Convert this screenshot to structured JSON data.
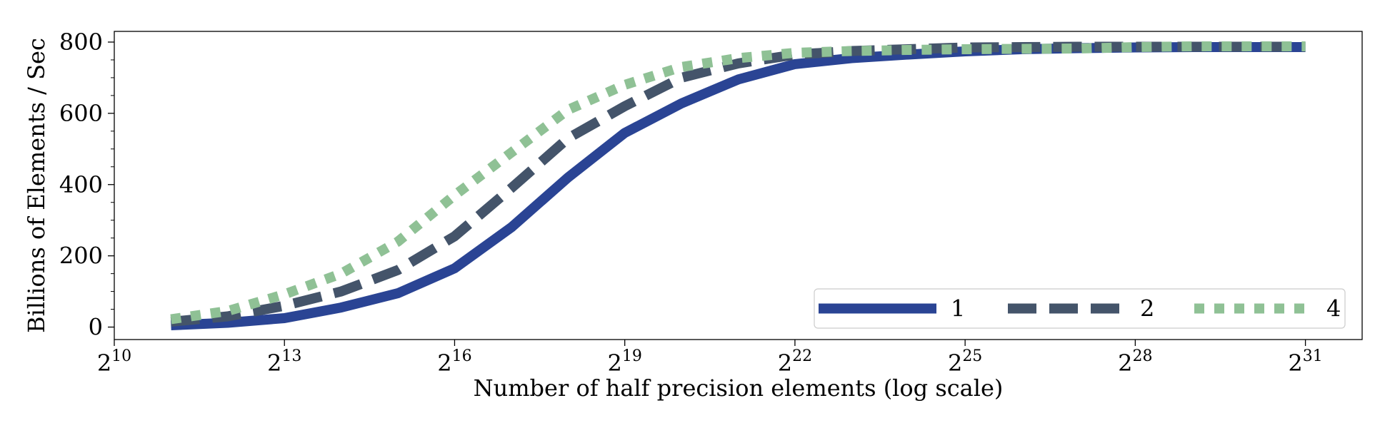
{
  "chart_data": {
    "type": "line",
    "title": "",
    "xlabel": "Number of half precision elements (log scale)",
    "ylabel": "Billions of Elements / Sec",
    "x_scale": "log2",
    "x_tick_base": "2",
    "x_tick_exponents": [
      "10",
      "13",
      "16",
      "19",
      "22",
      "25",
      "28",
      "31"
    ],
    "xlim_exponent": [
      10,
      32
    ],
    "y_ticks": [
      "0",
      "200",
      "400",
      "600",
      "800"
    ],
    "ylim": [
      -35,
      830
    ],
    "grid": false,
    "legend": {
      "placement": "lower-right",
      "columns": 3
    },
    "series": [
      {
        "name": "1",
        "color": "#2a4494",
        "style": "solid",
        "x_exponent": [
          11,
          12,
          13,
          14,
          15,
          16,
          17,
          18,
          19,
          20,
          21,
          22,
          23,
          24,
          25,
          26,
          27,
          28,
          29,
          30,
          31
        ],
        "y": [
          5,
          12,
          25,
          55,
          95,
          165,
          280,
          420,
          545,
          628,
          695,
          738,
          755,
          765,
          774,
          780,
          783,
          785,
          786,
          786,
          786
        ]
      },
      {
        "name": "2",
        "color": "#44546a",
        "style": "dashed",
        "x_exponent": [
          11,
          12,
          13,
          14,
          15,
          16,
          17,
          18,
          19,
          20,
          21,
          22,
          23,
          24,
          25,
          26,
          27,
          28,
          29,
          30,
          31
        ],
        "y": [
          15,
          30,
          60,
          100,
          160,
          255,
          390,
          530,
          620,
          700,
          740,
          765,
          775,
          780,
          785,
          786,
          787,
          787,
          787,
          787,
          787
        ]
      },
      {
        "name": "4",
        "color": "#8fc195",
        "style": "dotted",
        "x_exponent": [
          11,
          12,
          13,
          14,
          15,
          16,
          17,
          18,
          19,
          20,
          21,
          22,
          23,
          24,
          25,
          26,
          27,
          28,
          29,
          30,
          31
        ],
        "y": [
          22,
          45,
          92,
          150,
          240,
          370,
          490,
          610,
          680,
          730,
          755,
          770,
          775,
          778,
          780,
          781,
          782,
          786,
          788,
          788,
          788
        ]
      }
    ]
  }
}
